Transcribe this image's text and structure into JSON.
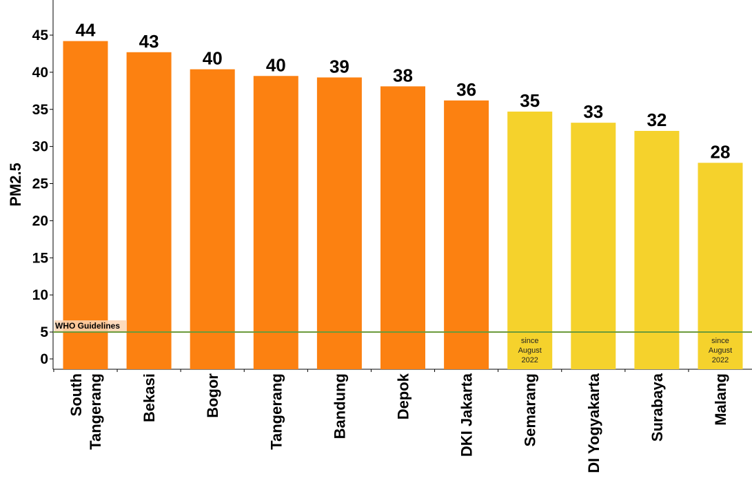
{
  "chart_data": {
    "type": "bar",
    "ylabel": "PM2.5",
    "ylim": [
      0,
      50
    ],
    "yticks": [
      0,
      5,
      10,
      15,
      20,
      25,
      30,
      35,
      40,
      45
    ],
    "grid": false,
    "categories": [
      "South Tangerang",
      "Bekasi",
      "Bogor",
      "Tangerang",
      "Bandung",
      "Depok",
      "DKI Jakarta",
      "Semarang",
      "DI Yogyakarta",
      "Surabaya",
      "Malang"
    ],
    "category_lines": [
      [
        "South",
        "Tangerang"
      ],
      [
        "Bekasi"
      ],
      [
        "Bogor"
      ],
      [
        "Tangerang"
      ],
      [
        "Bandung"
      ],
      [
        "Depok"
      ],
      [
        "DKI Jakarta"
      ],
      [
        "Semarang"
      ],
      [
        "DI Yogyakarta"
      ],
      [
        "Surabaya"
      ],
      [
        "Malang"
      ]
    ],
    "values": [
      44.2,
      42.7,
      40.4,
      39.5,
      39.3,
      38.1,
      36.2,
      34.7,
      33.2,
      32.1,
      27.8
    ],
    "value_labels": [
      "44",
      "43",
      "40",
      "40",
      "39",
      "38",
      "36",
      "35",
      "33",
      "32",
      "28"
    ],
    "bar_colors": [
      "#fc8111",
      "#fc8111",
      "#fc8111",
      "#fc8111",
      "#fc8111",
      "#fc8111",
      "#fc8111",
      "#f5d22c",
      "#f5d22c",
      "#f5d22c",
      "#f5d22c"
    ],
    "bar_notes": [
      "",
      "",
      "",
      "",
      "",
      "",
      "",
      "since\nAugust\n2022",
      "",
      "",
      "since\nAugust\n2022"
    ],
    "reference_line": {
      "value": 5,
      "label": "WHO Guidelines",
      "color": "#6a9a3a"
    }
  }
}
